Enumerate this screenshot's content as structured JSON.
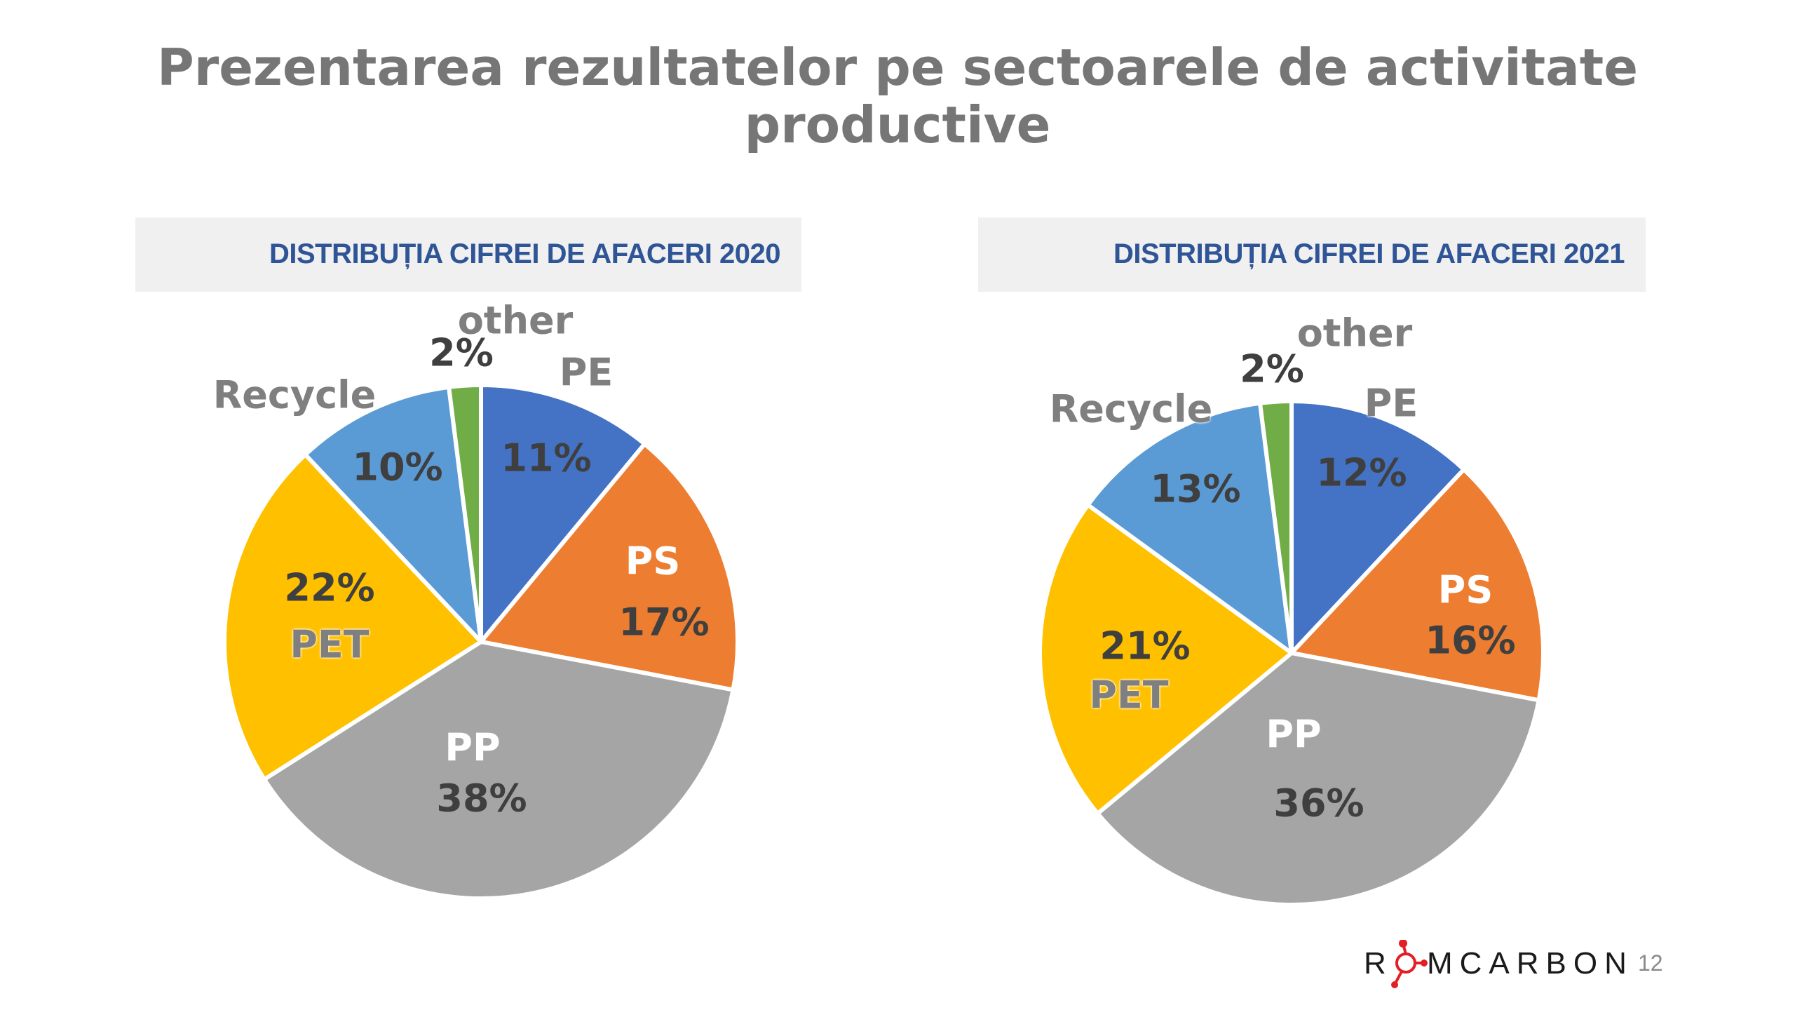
{
  "title": {
    "line1": "Prezentarea rezultatelor pe sectoarele de activitate",
    "line2": "productive"
  },
  "chart_data": [
    {
      "type": "pie",
      "title": "DISTRIBUȚIA CIFREI DE AFACERI 2020",
      "categories": [
        "PE",
        "PS",
        "PP",
        "PET",
        "Recycle",
        "other"
      ],
      "values": [
        11,
        17,
        38,
        22,
        10,
        2
      ],
      "data_labels": [
        "11%",
        "17%",
        "38%",
        "22%",
        "10%",
        "2%"
      ],
      "colors": [
        "#4472C4",
        "#ED7D31",
        "#A5A5A5",
        "#FFC000",
        "#5B9BD5",
        "#70AD47"
      ]
    },
    {
      "type": "pie",
      "title": "DISTRIBUȚIA CIFREI DE AFACERI 2021",
      "categories": [
        "PE",
        "PS",
        "PP",
        "PET",
        "Recycle",
        "other"
      ],
      "values": [
        12,
        16,
        36,
        21,
        13,
        2
      ],
      "data_labels": [
        "12%",
        "16%",
        "36%",
        "21%",
        "13%",
        "2%"
      ],
      "colors": [
        "#4472C4",
        "#ED7D31",
        "#A5A5A5",
        "#FFC000",
        "#5B9BD5",
        "#70AD47"
      ]
    }
  ],
  "footer": {
    "logo_text": "ROMCARBON",
    "page_number": "12"
  }
}
